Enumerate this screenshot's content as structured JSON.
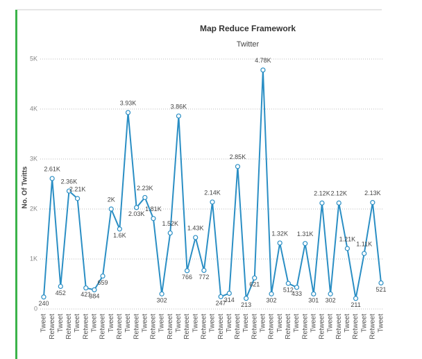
{
  "chart_data": {
    "type": "line",
    "title": "Map Reduce Framework",
    "subtitle": "Twitter",
    "y_label": "No. Of Twitts",
    "categories": [
      "Tweet",
      "Retweet",
      "Tweet",
      "Retweet",
      "Tweet",
      "Retweet",
      "Tweet",
      "Retweet",
      "Tweet",
      "Retweet",
      "Tweet",
      "Retweet",
      "Tweet",
      "Retweet",
      "Tweet",
      "Retweet",
      "Tweet",
      "Retweet",
      "Tweet",
      "Retweet",
      "Tweet",
      "Retweet",
      "Tweet",
      "Retweet",
      "Tweet",
      "Retweet",
      "Tweet",
      "Retweet",
      "Tweet",
      "Retweet",
      "Tweet",
      "Retweet",
      "Tweet",
      "Retweet",
      "Tweet",
      "Retweet",
      "Tweet",
      "Retweet",
      "Tweet",
      "Retweet",
      "Tweet"
    ],
    "series": [
      {
        "name": "No. Of Twitts",
        "color": "#2a8ec4",
        "values": [
          240,
          2610,
          452,
          2360,
          2210,
          421,
          384,
          659,
          2000,
          1600,
          3930,
          2030,
          2230,
          1810,
          302,
          1520,
          3860,
          766,
          1430,
          772,
          2140,
          247,
          314,
          2850,
          213,
          621,
          4780,
          302,
          1320,
          512,
          433,
          1310,
          301,
          2120,
          302,
          2120,
          1210,
          211,
          1110,
          2130,
          521
        ],
        "value_labels": [
          "240",
          "2.61K",
          "452",
          "2.36K",
          "2.21K",
          "421",
          "384",
          "659",
          "2K",
          "1.6K",
          "3.93K",
          "2.03K",
          "2.23K",
          "1.81K",
          "302",
          "1.52K",
          "3.86K",
          "766",
          "1.43K",
          "772",
          "2.14K",
          "247",
          "314",
          "2.85K",
          "213",
          "621",
          "4.78K",
          "302",
          "1.32K",
          "512",
          "433",
          "1.31K",
          "301",
          "2.12K",
          "302",
          "2.12K",
          "1.21K",
          "211",
          "1.11K",
          "2.13K",
          "521"
        ]
      }
    ],
    "ylim": [
      0,
      5000
    ],
    "yticks": [
      0,
      {
        "value": 1000,
        "label": "1K"
      },
      {
        "value": 2000,
        "label": "2K"
      },
      {
        "value": 3000,
        "label": "3K"
      },
      {
        "value": 4000,
        "label": "4K"
      },
      {
        "value": 5000,
        "label": "5K"
      }
    ],
    "grid": true
  }
}
